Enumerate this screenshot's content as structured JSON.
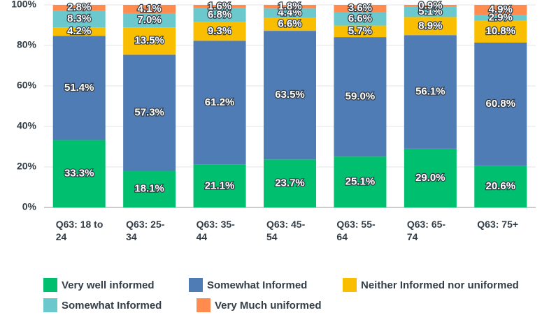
{
  "chart_data": {
    "type": "stacked_bar",
    "categories": [
      "Q63: 18 to 24",
      "Q63: 25-34",
      "Q63: 35-44",
      "Q63: 45-54",
      "Q63: 55-64",
      "Q63: 65-74",
      "Q63: 75+"
    ],
    "series": [
      {
        "name": "Very well informed",
        "color": "#00bf6f",
        "values": [
          33.3,
          18.1,
          21.1,
          23.7,
          25.1,
          29.0,
          20.6
        ],
        "value_labels": [
          "33.3%",
          "18.1%",
          "21.1%",
          "23.7%",
          "25.1%",
          "29.0%",
          "20.6%"
        ]
      },
      {
        "name": "Somewhat Informed",
        "color": "#507cb6",
        "values": [
          51.4,
          57.3,
          61.2,
          63.5,
          59.0,
          56.1,
          60.8
        ],
        "value_labels": [
          "51.4%",
          "57.3%",
          "61.2%",
          "63.5%",
          "59.0%",
          "56.1%",
          "60.8%"
        ]
      },
      {
        "name": "Neither Informed nor uniformed",
        "color": "#f9be00",
        "values": [
          4.2,
          13.5,
          9.3,
          6.6,
          5.7,
          8.9,
          10.8
        ],
        "value_labels": [
          "4.2%",
          "13.5%",
          "9.3%",
          "6.6%",
          "5.7%",
          "8.9%",
          "10.8%"
        ]
      },
      {
        "name": "Somewhat Informed",
        "color": "#6bc8cd",
        "values": [
          8.3,
          7.0,
          6.8,
          4.4,
          6.6,
          5.1,
          2.9
        ],
        "value_labels": [
          "8.3%",
          "7.0%",
          "6.8%",
          "4.4%",
          "6.6%",
          "5.1%",
          "2.9%"
        ]
      },
      {
        "name": "Very Much uniformed",
        "color": "#ff8b4f",
        "values": [
          2.8,
          4.1,
          1.6,
          1.8,
          3.6,
          0.9,
          4.9
        ],
        "value_labels": [
          "2.8%",
          "4.1%",
          "1.6%",
          "1.8%",
          "3.6%",
          "0.9%",
          "4.9%"
        ]
      }
    ],
    "ylim": [
      0,
      100
    ],
    "yticks": [
      {
        "value": 0,
        "label": "0%"
      },
      {
        "value": 20,
        "label": "20%"
      },
      {
        "value": 40,
        "label": "40%"
      },
      {
        "value": 60,
        "label": "60%"
      },
      {
        "value": 80,
        "label": "80%"
      },
      {
        "value": 100,
        "label": "100%"
      }
    ],
    "grid": true
  }
}
